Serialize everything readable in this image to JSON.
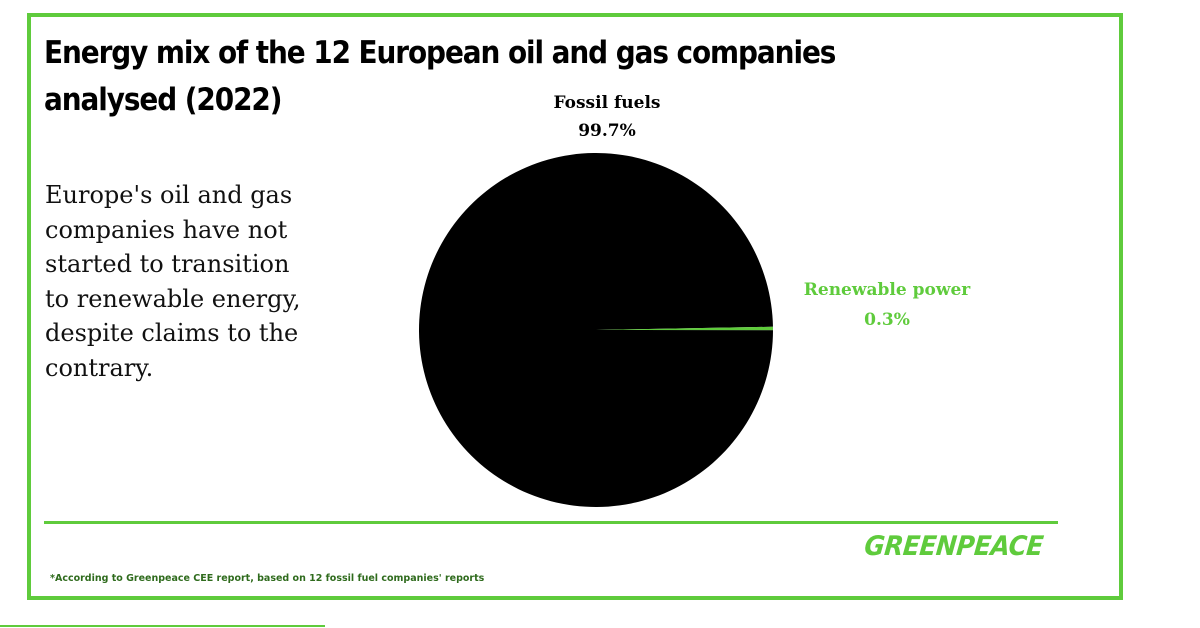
{
  "title": "Energy mix of the 12 European oil and gas companies analysed (2022)",
  "body_text": " Europe's oil and gas\ncompanies have not\nstarted to transition\nto renewable energy,\ndespite claims to the\ncontrary.",
  "footnote": "*According to Greenpeace CEE report, based on 12 fossil fuel companies' reports",
  "logo_text": "GREENPEACE",
  "colors": {
    "accent": "#5fcb3c",
    "fossil": "#000000",
    "renewable": "#5fcb3c"
  },
  "chart_data": {
    "type": "pie",
    "title": "Energy mix of the 12 European oil and gas companies analysed (2022)",
    "slices": [
      {
        "label": "Fossil fuels",
        "value": 99.7,
        "value_label": "99.7%",
        "color": "#000000"
      },
      {
        "label": "Renewable power",
        "value": 0.3,
        "value_label": "0.3%",
        "color": "#5fcb3c"
      }
    ]
  }
}
